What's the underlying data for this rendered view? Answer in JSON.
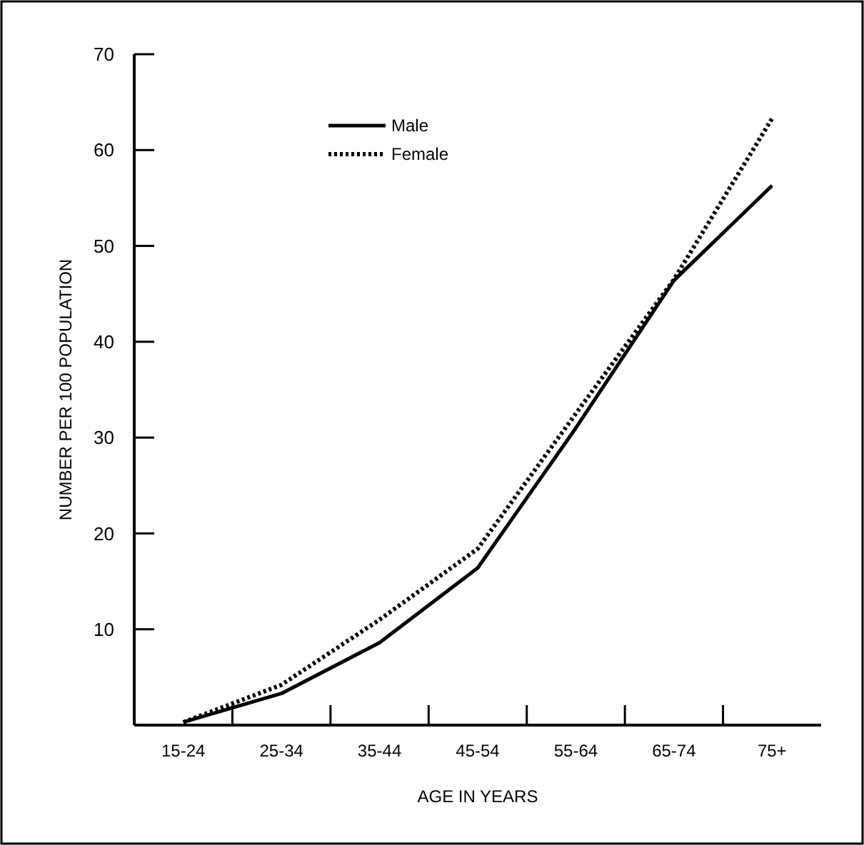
{
  "chart_data": {
    "type": "line",
    "xlabel": "AGE IN YEARS",
    "ylabel": "NUMBER PER 100 POPULATION",
    "categories": [
      "15-24",
      "25-34",
      "35-44",
      "45-54",
      "55-64",
      "65-74",
      "75+"
    ],
    "ylim": [
      0,
      70
    ],
    "yticks": [
      10,
      20,
      30,
      40,
      50,
      60,
      70
    ],
    "series": [
      {
        "name": "Male",
        "color": "#000000",
        "line_style": "solid",
        "values": [
          0.3,
          3.3,
          8.6,
          16.4,
          31,
          46.4,
          56.3
        ]
      },
      {
        "name": "Female",
        "color": "#000000",
        "line_style": "dotted",
        "values": [
          0.3,
          4.2,
          11,
          18.4,
          32.5,
          46.5,
          63.3
        ]
      }
    ],
    "legend": "top",
    "grid": false
  }
}
